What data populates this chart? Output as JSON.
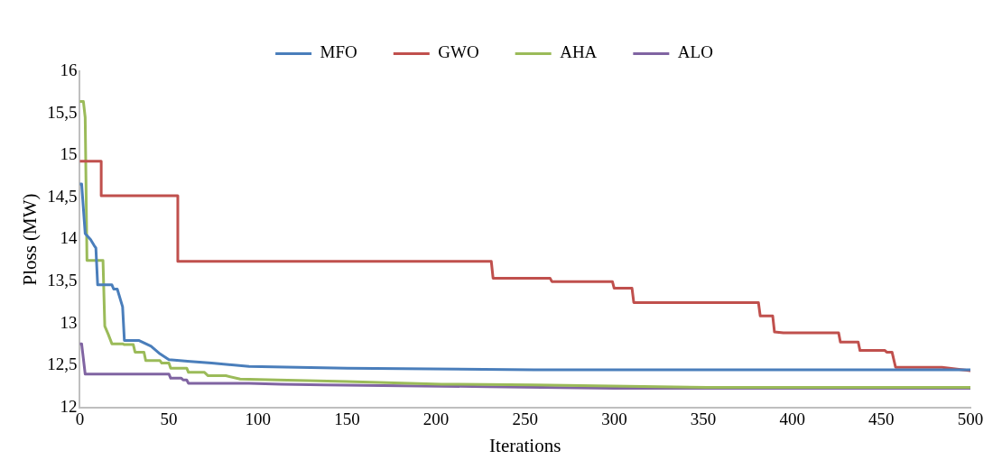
{
  "chart_data": {
    "type": "line",
    "xlabel": "Iterations",
    "ylabel": "Ploss (MW)",
    "xlim": [
      0,
      500
    ],
    "xticks": [
      0,
      50,
      100,
      150,
      200,
      250,
      300,
      350,
      400,
      450,
      500
    ],
    "ylim": [
      12,
      16
    ],
    "yticks": [
      12,
      {
        "value": 12.5,
        "label": "12,5"
      },
      13,
      {
        "value": 13.5,
        "label": "13,5"
      },
      14,
      {
        "value": 14.5,
        "label": "14,5"
      },
      15,
      {
        "value": 15.5,
        "label": "15,5"
      },
      16
    ],
    "grid": false,
    "legend": "top",
    "marker": "none",
    "line_style": "solid",
    "series": [
      {
        "name": "MFO",
        "color": "#4a7ebb",
        "x": [
          0,
          1,
          3,
          6,
          8,
          9,
          10,
          18,
          19,
          21,
          22,
          24,
          25,
          33,
          36,
          40,
          45,
          50,
          62,
          74,
          95,
          150,
          255,
          500
        ],
        "values": [
          14.66,
          14.66,
          14.07,
          14.0,
          13.93,
          13.9,
          13.46,
          13.46,
          13.41,
          13.41,
          13.34,
          13.2,
          12.8,
          12.8,
          12.77,
          12.73,
          12.64,
          12.57,
          12.55,
          12.53,
          12.49,
          12.47,
          12.45,
          12.45
        ]
      },
      {
        "name": "GWO",
        "color": "#c0504d",
        "x": [
          0,
          12,
          12,
          55,
          55,
          231,
          232,
          264,
          265,
          299,
          300,
          310,
          311,
          381,
          382,
          389,
          390,
          395,
          426,
          427,
          437,
          438,
          452,
          453,
          456,
          458,
          484,
          500
        ],
        "values": [
          14.93,
          14.93,
          14.52,
          14.52,
          13.74,
          13.74,
          13.54,
          13.54,
          13.5,
          13.5,
          13.42,
          13.42,
          13.25,
          13.25,
          13.09,
          13.09,
          12.9,
          12.89,
          12.89,
          12.78,
          12.78,
          12.68,
          12.68,
          12.66,
          12.66,
          12.48,
          12.48,
          12.44
        ]
      },
      {
        "name": "AHA",
        "color": "#9bbb59",
        "x": [
          0,
          2,
          3,
          4,
          13,
          14,
          16,
          18,
          24,
          25,
          30,
          31,
          36,
          37,
          45,
          46,
          50,
          51,
          60,
          61,
          70,
          72,
          82,
          90,
          111,
          150,
          203,
          255,
          352,
          500
        ],
        "values": [
          15.64,
          15.64,
          15.45,
          13.75,
          13.75,
          12.97,
          12.87,
          12.76,
          12.76,
          12.75,
          12.75,
          12.66,
          12.66,
          12.56,
          12.56,
          12.53,
          12.53,
          12.47,
          12.47,
          12.42,
          12.42,
          12.38,
          12.38,
          12.34,
          12.33,
          12.31,
          12.28,
          12.27,
          12.24,
          12.24
        ]
      },
      {
        "name": "ALO",
        "color": "#8064a2",
        "x": [
          0,
          1,
          3,
          50,
          51,
          57,
          58,
          60,
          61,
          95,
          113,
          137,
          229,
          300,
          500
        ],
        "values": [
          12.76,
          12.76,
          12.4,
          12.4,
          12.35,
          12.35,
          12.33,
          12.33,
          12.29,
          12.29,
          12.28,
          12.27,
          12.25,
          12.23,
          12.23
        ]
      }
    ]
  }
}
